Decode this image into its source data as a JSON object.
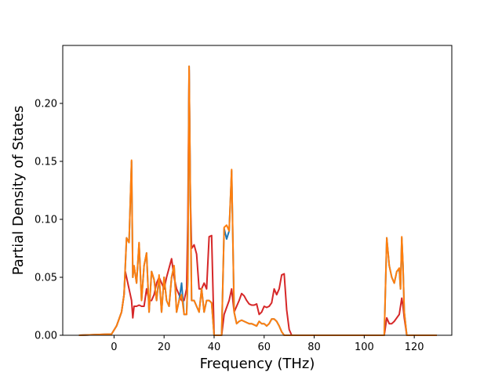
{
  "chart_data": {
    "type": "line",
    "title": "",
    "xlabel": "Frequency (THz)",
    "ylabel": "Partial Density of States",
    "xlim": [
      -20.5,
      135
    ],
    "ylim": [
      0,
      0.25
    ],
    "xticks": [
      0,
      20,
      40,
      60,
      80,
      100,
      120
    ],
    "yticks": [
      0.0,
      0.05,
      0.1,
      0.15,
      0.2
    ],
    "ytick_labels": [
      "0.00",
      "0.05",
      "0.10",
      "0.15",
      "0.20"
    ],
    "grid": false,
    "legend": "none",
    "series": [
      {
        "color": "#d62728",
        "x": [
          -14,
          -1,
          1,
          3,
          4,
          4.5,
          5,
          6,
          7,
          7.5,
          8,
          9,
          10,
          11,
          12,
          13,
          14,
          15,
          16,
          17,
          18,
          19,
          20,
          21,
          22,
          23,
          24,
          25,
          26,
          27,
          28,
          29,
          29.5,
          30,
          30.5,
          31,
          32,
          33,
          34,
          35,
          36,
          37,
          38,
          39,
          40,
          41,
          42,
          43,
          44,
          45,
          46,
          47,
          48,
          49,
          50,
          51,
          52,
          53,
          54,
          55,
          56,
          57,
          58,
          59,
          60,
          61,
          62,
          63,
          64,
          65,
          66,
          67,
          68,
          69,
          70,
          71,
          72,
          108,
          109,
          110,
          111,
          112,
          113,
          114,
          114.5,
          115,
          115.5,
          116,
          117,
          129
        ],
        "y": [
          0,
          0.001,
          0.008,
          0.02,
          0.035,
          0.055,
          0.05,
          0.04,
          0.03,
          0.015,
          0.025,
          0.025,
          0.026,
          0.025,
          0.025,
          0.04,
          0.03,
          0.03,
          0.035,
          0.045,
          0.05,
          0.045,
          0.04,
          0.05,
          0.058,
          0.066,
          0.05,
          0.04,
          0.035,
          0.03,
          0.03,
          0.04,
          0.1,
          0.229,
          0.12,
          0.075,
          0.078,
          0.07,
          0.04,
          0.04,
          0.045,
          0.04,
          0.085,
          0.086,
          0.0,
          0.0,
          0.0,
          0.0,
          0.018,
          0.024,
          0.03,
          0.04,
          0.02,
          0.025,
          0.03,
          0.036,
          0.034,
          0.03,
          0.027,
          0.026,
          0.026,
          0.027,
          0.018,
          0.02,
          0.025,
          0.024,
          0.025,
          0.028,
          0.04,
          0.035,
          0.04,
          0.052,
          0.053,
          0.022,
          0.005,
          0.0,
          0.0,
          0.0,
          0.015,
          0.01,
          0.01,
          0.012,
          0.015,
          0.018,
          0.025,
          0.032,
          0.025,
          0.015,
          0.0,
          0
        ]
      },
      {
        "color": "#1f77b4",
        "x": [
          -14,
          -1,
          1,
          3,
          4,
          5,
          6,
          7,
          7.5,
          8,
          9,
          10,
          11,
          12,
          13,
          14,
          15,
          16,
          17,
          18,
          19,
          20,
          21,
          22,
          23,
          24,
          25,
          26,
          27,
          28,
          29,
          29.5,
          30,
          30.5,
          31,
          32,
          33,
          34,
          35,
          36,
          37,
          38,
          39,
          40,
          41,
          42,
          43,
          44,
          45,
          46,
          47,
          48,
          49,
          50,
          51,
          52,
          53,
          54,
          55,
          56,
          57,
          58,
          59,
          60,
          61,
          62,
          63,
          64,
          65,
          66,
          67,
          68,
          69,
          70,
          71,
          72,
          108,
          109,
          110,
          111,
          112,
          113,
          114,
          114.5,
          115,
          115.5,
          116,
          117,
          129
        ],
        "y": [
          0,
          0.001,
          0.008,
          0.02,
          0.035,
          0.084,
          0.08,
          0.15,
          0.05,
          0.06,
          0.045,
          0.079,
          0.03,
          0.06,
          0.071,
          0.02,
          0.055,
          0.048,
          0.03,
          0.05,
          0.02,
          0.05,
          0.03,
          0.025,
          0.05,
          0.06,
          0.02,
          0.03,
          0.045,
          0.018,
          0.018,
          0.05,
          0.232,
          0.12,
          0.03,
          0.03,
          0.025,
          0.02,
          0.04,
          0.02,
          0.03,
          0.03,
          0.028,
          0.0,
          0.0,
          0.0,
          0.0,
          0.092,
          0.083,
          0.09,
          0.142,
          0.02,
          0.01,
          0.012,
          0.013,
          0.012,
          0.011,
          0.01,
          0.01,
          0.009,
          0.008,
          0.012,
          0.01,
          0.01,
          0.008,
          0.01,
          0.014,
          0.014,
          0.012,
          0.008,
          0.003,
          0.0,
          0.0,
          0.0,
          0.0,
          0.0,
          0.0,
          0.084,
          0.06,
          0.05,
          0.045,
          0.055,
          0.057,
          0.04,
          0.084,
          0.06,
          0.02,
          0.0,
          0
        ]
      },
      {
        "color": "#ff7f0e",
        "x": [
          -14,
          -1,
          1,
          3,
          4,
          5,
          6,
          7,
          7.5,
          8,
          9,
          10,
          11,
          12,
          13,
          14,
          15,
          16,
          17,
          18,
          19,
          20,
          21,
          22,
          23,
          24,
          25,
          26,
          27,
          28,
          29,
          29.5,
          30,
          30.5,
          31,
          32,
          33,
          34,
          35,
          36,
          37,
          38,
          39,
          40,
          41,
          42,
          43,
          44,
          45,
          46,
          47,
          48,
          49,
          50,
          51,
          52,
          53,
          54,
          55,
          56,
          57,
          58,
          59,
          60,
          61,
          62,
          63,
          64,
          65,
          66,
          67,
          68,
          69,
          70,
          71,
          72,
          108,
          109,
          110,
          111,
          112,
          113,
          114,
          114.5,
          115,
          115.5,
          116,
          117,
          129
        ],
        "y": [
          0,
          0.001,
          0.008,
          0.02,
          0.035,
          0.084,
          0.08,
          0.151,
          0.05,
          0.06,
          0.045,
          0.08,
          0.03,
          0.06,
          0.071,
          0.02,
          0.055,
          0.048,
          0.03,
          0.052,
          0.02,
          0.05,
          0.03,
          0.025,
          0.05,
          0.06,
          0.02,
          0.03,
          0.035,
          0.018,
          0.018,
          0.05,
          0.232,
          0.12,
          0.03,
          0.03,
          0.025,
          0.02,
          0.04,
          0.02,
          0.03,
          0.03,
          0.028,
          0.0,
          0.0,
          0.0,
          0.0,
          0.093,
          0.095,
          0.09,
          0.143,
          0.02,
          0.01,
          0.012,
          0.013,
          0.012,
          0.011,
          0.01,
          0.01,
          0.009,
          0.008,
          0.012,
          0.01,
          0.01,
          0.008,
          0.01,
          0.014,
          0.014,
          0.012,
          0.008,
          0.003,
          0.0,
          0.0,
          0.0,
          0.0,
          0.0,
          0.0,
          0.084,
          0.06,
          0.05,
          0.045,
          0.055,
          0.058,
          0.04,
          0.085,
          0.06,
          0.02,
          0.0,
          0
        ]
      }
    ]
  }
}
